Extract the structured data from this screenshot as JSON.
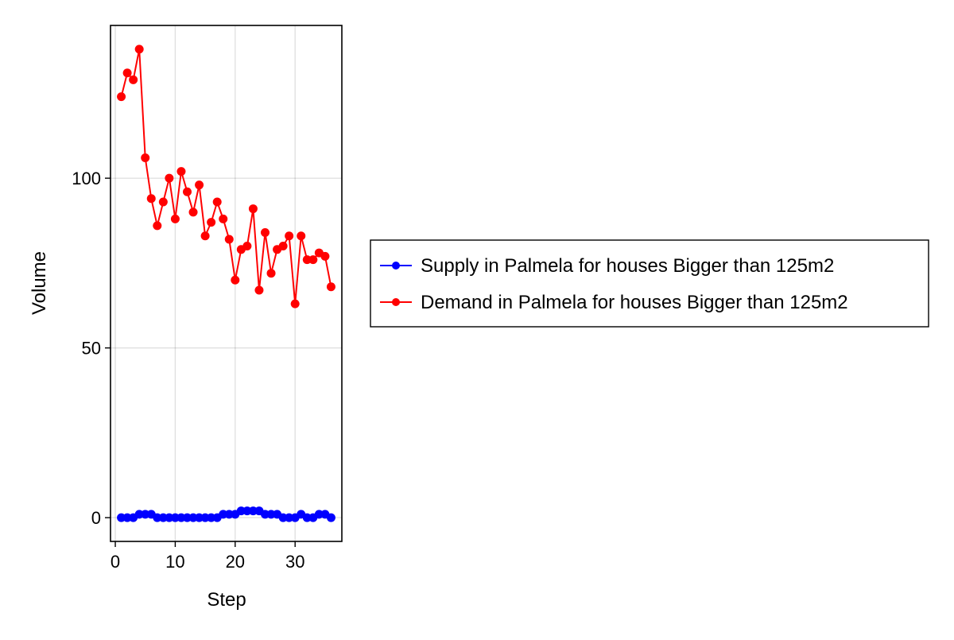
{
  "chart_data": {
    "type": "line",
    "title": "",
    "xlabel": "Step",
    "ylabel": "Volume",
    "xlim": [
      -0.8,
      37.8
    ],
    "ylim": [
      -7,
      145
    ],
    "xticks": [
      0,
      10,
      20,
      30
    ],
    "yticks": [
      0,
      50,
      100
    ],
    "grid": true,
    "legend_position": "right",
    "x": [
      1,
      2,
      3,
      4,
      5,
      6,
      7,
      8,
      9,
      10,
      11,
      12,
      13,
      14,
      15,
      16,
      17,
      18,
      19,
      20,
      21,
      22,
      23,
      24,
      25,
      26,
      27,
      28,
      29,
      30,
      31,
      32,
      33,
      34,
      35,
      36
    ],
    "series": [
      {
        "name": "Supply in Palmela for houses Bigger than 125m2",
        "color": "#0000ff",
        "values": [
          0,
          0,
          0,
          1,
          1,
          1,
          0,
          0,
          0,
          0,
          0,
          0,
          0,
          0,
          0,
          0,
          0,
          1,
          1,
          1,
          2,
          2,
          2,
          2,
          1,
          1,
          1,
          0,
          0,
          0,
          1,
          0,
          0,
          1,
          1,
          0
        ]
      },
      {
        "name": "Demand in Palmela for houses Bigger than 125m2",
        "color": "#ff0000",
        "values": [
          124,
          131,
          129,
          138,
          106,
          94,
          86,
          93,
          100,
          88,
          102,
          96,
          90,
          98,
          83,
          87,
          93,
          88,
          82,
          70,
          79,
          80,
          91,
          67,
          84,
          72,
          79,
          80,
          83,
          63,
          83,
          76,
          76,
          78,
          77,
          68
        ]
      }
    ]
  }
}
